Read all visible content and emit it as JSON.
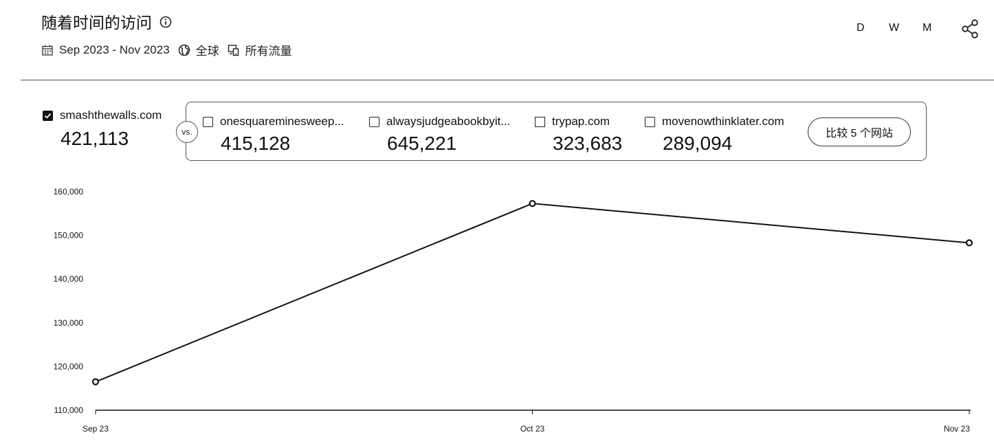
{
  "header": {
    "title": "随着时间的访问",
    "date_range": "Sep 2023 - Nov 2023",
    "region": "全球",
    "traffic": "所有流量"
  },
  "period_toggle": [
    "D",
    "W",
    "M"
  ],
  "main_site": {
    "domain": "smashthewalls.com",
    "value": "421,113",
    "checked": true
  },
  "vs_label": "vs.",
  "competitors": [
    {
      "domain": "onesquareminesweep...",
      "value": "415,128"
    },
    {
      "domain": "alwaysjudgeabookbyit...",
      "value": "645,221"
    },
    {
      "domain": "trypap.com",
      "value": "323,683"
    },
    {
      "domain": "movenowthinklater.com",
      "value": "289,094"
    }
  ],
  "compare_button": "比较 5 个网站",
  "chart_data": {
    "type": "line",
    "categories": [
      "Sep 23",
      "Oct 23",
      "Nov 23"
    ],
    "series": [
      {
        "values": [
          116500,
          157300,
          148300
        ]
      }
    ],
    "ylim": [
      110000,
      160000
    ],
    "y_ticks": [
      "110,000",
      "120,000",
      "130,000",
      "140,000",
      "150,000",
      "160,000"
    ],
    "grid": false,
    "line_color": "#111111"
  }
}
